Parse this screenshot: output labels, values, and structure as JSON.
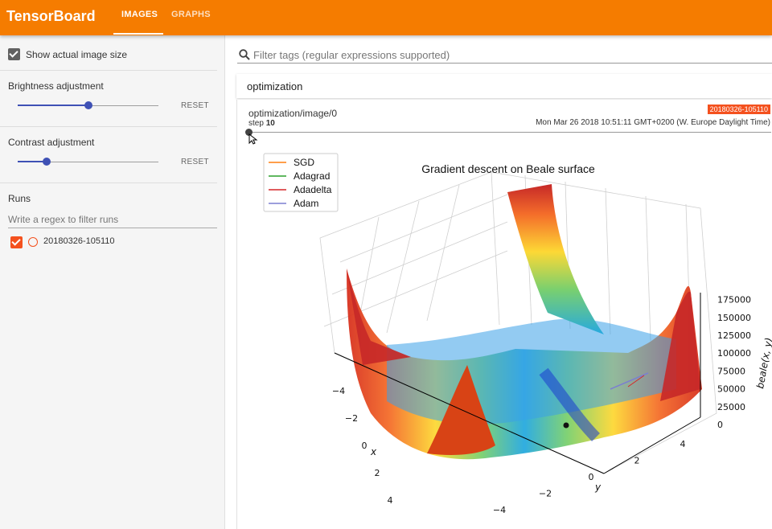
{
  "header": {
    "brand": "TensorBoard",
    "tabs": [
      {
        "label": "IMAGES",
        "active": true
      },
      {
        "label": "GRAPHS",
        "active": false
      }
    ],
    "color": "#f57c00"
  },
  "sidebar": {
    "show_actual_size": {
      "label": "Show actual image size",
      "checked": true
    },
    "brightness": {
      "label": "Brightness adjustment",
      "reset": "RESET",
      "value": 0.5
    },
    "contrast": {
      "label": "Contrast adjustment",
      "reset": "RESET",
      "value": 0.2
    },
    "runs": {
      "title": "Runs",
      "filter_placeholder": "Write a regex to filter runs",
      "items": [
        {
          "name": "20180326-105110",
          "checked": true,
          "color": "#f4511e"
        }
      ]
    }
  },
  "main": {
    "search_placeholder": "Filter tags (regular expressions supported)",
    "section_title": "optimization",
    "card": {
      "tag": "optimization/image/0",
      "run_badge": "20180326-105110",
      "step_label": "step",
      "step_value": "10",
      "timestamp": "Mon Mar 26 2018 10:51:11 GMT+0200 (W. Europe Daylight Time)"
    }
  },
  "chart_data": {
    "type": "surface",
    "title": "Gradient descent on Beale surface",
    "xlabel": "x",
    "ylabel": "y",
    "zlabel": "beale(x, y)",
    "x_ticks": [
      "−4",
      "−2",
      "0",
      "2",
      "4"
    ],
    "y_ticks": [
      "−4",
      "−2",
      "0",
      "2",
      "4"
    ],
    "z_ticks": [
      "0",
      "25000",
      "50000",
      "75000",
      "100000",
      "125000",
      "150000",
      "175000"
    ],
    "legend": [
      {
        "name": "SGD",
        "color": "#ff7f0e"
      },
      {
        "name": "Adagrad",
        "color": "#2ca02c"
      },
      {
        "name": "Adadelta",
        "color": "#d62728"
      },
      {
        "name": "Adam",
        "color": "#7b7fd0"
      }
    ],
    "legend_placement": "top-left",
    "colormap": "jet"
  }
}
